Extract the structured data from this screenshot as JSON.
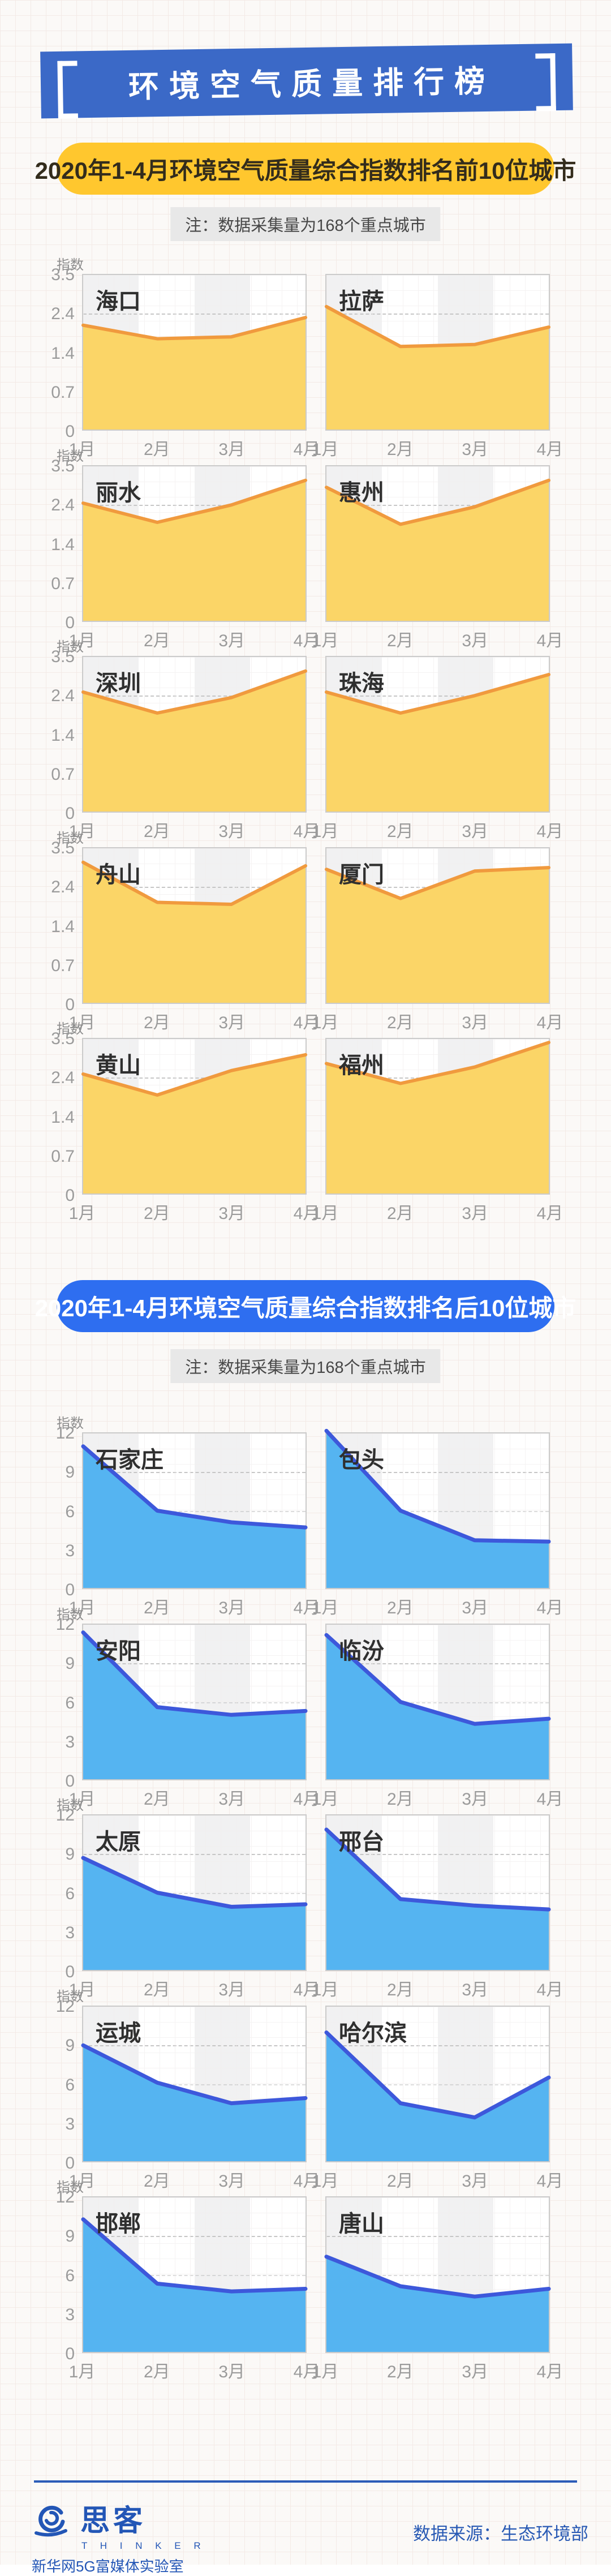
{
  "page": {
    "title": "环境空气质量排行榜",
    "footer": {
      "logo_text": "思客",
      "logo_subtext": "T H I N K E R",
      "logo_org": "新华网5G富媒体实验室",
      "source_label": "数据来源：生态环境部"
    }
  },
  "colors": {
    "banner_blue": "#3b69c7",
    "pill_yellow": "#ffc72e",
    "pill_blue": "#2e6ef0",
    "yellow_fill": "#fbd567",
    "yellow_line": "#f09a3e",
    "blue_fill": "#55b4f1",
    "blue_line": "#3d58db",
    "band_gray": "#f1f1f2",
    "footer_blue": "#2356b6"
  },
  "chart_data": [
    {
      "type": "area",
      "theme": "yellow",
      "header": "2020年1-4月环境空气质量综合指数排名前10位城市",
      "note": "注：数据采集量为168个重点城市",
      "unit_label": "指数",
      "x_labels": [
        "1月",
        "2月",
        "3月",
        "4月"
      ],
      "y_tick_labels": [
        "3.5",
        "2.4",
        "1.4",
        "0.7",
        "0"
      ],
      "y_stops_bottom_up": [
        0,
        0.7,
        1.4,
        2.4,
        3.5
      ],
      "grid": "dashed horizontal at middle ticks, alternating gray column bands",
      "charts": [
        {
          "city": "海口",
          "values": [
            2.1,
            1.75,
            1.8,
            2.3
          ]
        },
        {
          "city": "拉萨",
          "values": [
            2.6,
            1.55,
            1.6,
            2.05
          ]
        },
        {
          "city": "丽水",
          "values": [
            2.45,
            1.95,
            2.4,
            3.1
          ]
        },
        {
          "city": "惠州",
          "values": [
            2.9,
            1.9,
            2.35,
            3.1
          ]
        },
        {
          "city": "深圳",
          "values": [
            2.5,
            1.95,
            2.35,
            3.1
          ]
        },
        {
          "city": "珠海",
          "values": [
            2.5,
            1.95,
            2.4,
            3.0
          ]
        },
        {
          "city": "舟山",
          "values": [
            3.1,
            2.0,
            1.95,
            3.0
          ]
        },
        {
          "city": "厦门",
          "values": [
            2.9,
            2.1,
            2.85,
            2.95
          ]
        },
        {
          "city": "黄山",
          "values": [
            2.5,
            1.95,
            2.6,
            3.05
          ]
        },
        {
          "city": "福州",
          "values": [
            2.8,
            2.25,
            2.7,
            3.4
          ]
        }
      ]
    },
    {
      "type": "area",
      "theme": "blue",
      "header": "2020年1-4月环境空气质量综合指数排名后10位城市",
      "note": "注：数据采集量为168个重点城市",
      "unit_label": "指数",
      "x_labels": [
        "1月",
        "2月",
        "3月",
        "4月"
      ],
      "y_tick_labels": [
        "12",
        "9",
        "6",
        "3",
        "0"
      ],
      "y_stops_bottom_up": [
        0,
        3,
        6,
        9,
        12
      ],
      "grid": "dashed horizontal at middle ticks, alternating gray column bands",
      "charts": [
        {
          "city": "石家庄",
          "values": [
            11.0,
            6.0,
            5.1,
            4.7
          ]
        },
        {
          "city": "包头",
          "values": [
            12.2,
            6.0,
            3.7,
            3.6
          ]
        },
        {
          "city": "安阳",
          "values": [
            11.4,
            5.6,
            5.0,
            5.3
          ]
        },
        {
          "city": "临汾",
          "values": [
            11.2,
            6.0,
            4.3,
            4.7
          ]
        },
        {
          "city": "太原",
          "values": [
            8.7,
            6.0,
            4.9,
            5.1
          ]
        },
        {
          "city": "邢台",
          "values": [
            10.9,
            5.5,
            5.0,
            4.7
          ]
        },
        {
          "city": "运城",
          "values": [
            9.0,
            6.1,
            4.5,
            4.9
          ]
        },
        {
          "city": "哈尔滨",
          "values": [
            10.0,
            4.5,
            3.4,
            6.5
          ]
        },
        {
          "city": "邯郸",
          "values": [
            10.3,
            5.3,
            4.7,
            4.9
          ]
        },
        {
          "city": "唐山",
          "values": [
            7.4,
            5.1,
            4.3,
            4.9
          ]
        }
      ]
    }
  ],
  "layout": {
    "section_row_tops": [
      [
        440,
        778,
        1115,
        1453,
        1790
      ],
      [
        2487,
        2825,
        3162,
        3500,
        3837
      ]
    ],
    "theme_styles": {
      "yellow": {
        "fill": "#fbd567",
        "line": "#f09a3e",
        "line_width": 6
      },
      "blue": {
        "fill": "#55b4f1",
        "line": "#3d58db",
        "line_width": 7
      }
    }
  }
}
